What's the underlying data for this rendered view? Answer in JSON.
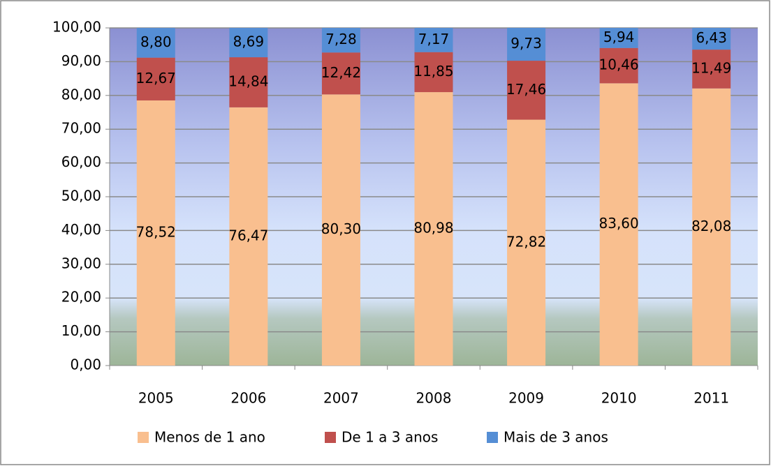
{
  "chart_data": {
    "type": "stacked_bar",
    "categories": [
      "2005",
      "2006",
      "2007",
      "2008",
      "2009",
      "2010",
      "2011"
    ],
    "series": [
      {
        "name": "Menos de 1 ano",
        "color": "#f9bf8f",
        "values": [
          78.52,
          76.47,
          80.3,
          80.98,
          72.82,
          83.6,
          82.08
        ],
        "value_labels": [
          "78,52",
          "76,47",
          "80,30",
          "80,98",
          "72,82",
          "83,60",
          "82,08"
        ]
      },
      {
        "name": "De 1 a 3 anos",
        "color": "#c0504d",
        "values": [
          12.67,
          14.84,
          12.42,
          11.85,
          17.46,
          10.46,
          11.49
        ],
        "value_labels": [
          "12,67",
          "14,84",
          "12,42",
          "11,85",
          "17,46",
          "10,46",
          "11,49"
        ]
      },
      {
        "name": "Mais de 3 anos",
        "color": "#558ed5",
        "values": [
          8.8,
          8.69,
          7.28,
          7.17,
          9.73,
          5.94,
          6.43
        ],
        "value_labels": [
          "8,80",
          "8,69",
          "7,28",
          "7,17",
          "9,73",
          "5,94",
          "6,43"
        ]
      }
    ],
    "ylim": [
      0,
      100
    ],
    "yticks": [
      {
        "value": 0,
        "label": "0,00"
      },
      {
        "value": 10,
        "label": "10,00"
      },
      {
        "value": 20,
        "label": "20,00"
      },
      {
        "value": 30,
        "label": "30,00"
      },
      {
        "value": 40,
        "label": "40,00"
      },
      {
        "value": 50,
        "label": "50,00"
      },
      {
        "value": 60,
        "label": "60,00"
      },
      {
        "value": 70,
        "label": "70,00"
      },
      {
        "value": 80,
        "label": "80,00"
      },
      {
        "value": 90,
        "label": "90,00"
      },
      {
        "value": 100,
        "label": "100,00"
      }
    ],
    "grid": true,
    "legend": "bottom"
  }
}
